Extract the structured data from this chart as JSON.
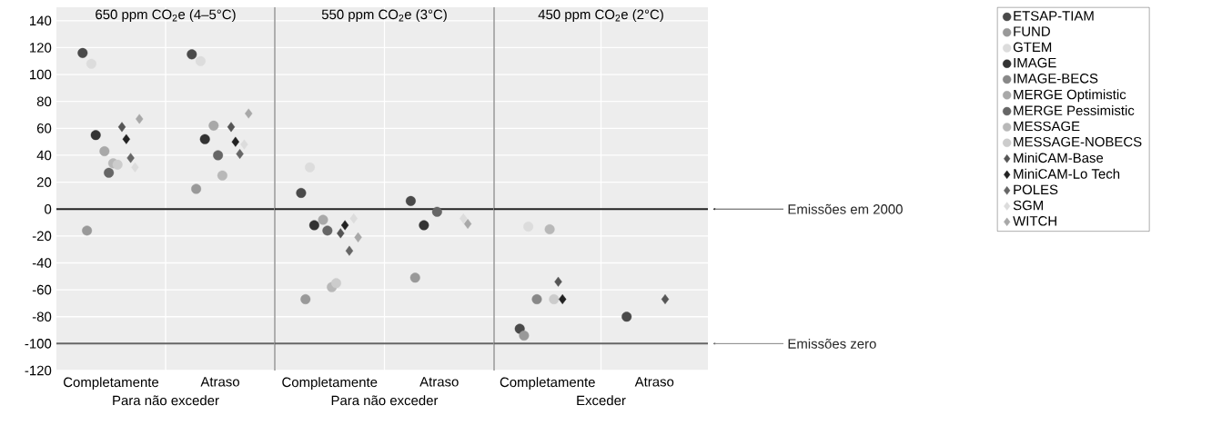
{
  "chart_data": [
    {
      "type": "scatter",
      "title": "650 ppm CO$_{2}$e (4–5°C)",
      "xlabel": "Para não exceder",
      "categories": [
        "Completamente",
        "Atraso"
      ],
      "ylim": [
        -120,
        150
      ],
      "yticks": [
        -120,
        -100,
        -80,
        -60,
        -40,
        -20,
        0,
        20,
        40,
        60,
        80,
        100,
        120,
        140
      ],
      "grid": true,
      "ref_lines": [
        {
          "axis": "y",
          "value": 0,
          "color": "#222222"
        },
        {
          "axis": "y",
          "value": -100,
          "color": "#666666"
        }
      ],
      "series": [
        {
          "color": "#4a4a4a",
          "marker": "circle",
          "values": [
            116,
            115
          ]
        },
        {
          "color": "#999999",
          "marker": "circle",
          "values": [
            -16,
            15
          ]
        },
        {
          "color": "#dcdcdc",
          "marker": "circle",
          "values": [
            108,
            110
          ]
        },
        {
          "color": "#333333",
          "marker": "circle",
          "values": [
            55,
            52
          ]
        },
        {
          "color": "#888888",
          "marker": "circle",
          "values": [
            null,
            null
          ]
        },
        {
          "color": "#a8a8a8",
          "marker": "circle",
          "values": [
            43,
            62
          ]
        },
        {
          "color": "#666666",
          "marker": "circle",
          "values": [
            27,
            40
          ]
        },
        {
          "color": "#b8b8b8",
          "marker": "circle",
          "values": [
            34,
            25
          ]
        },
        {
          "color": "#cccccc",
          "marker": "circle",
          "values": [
            33,
            null
          ]
        },
        {
          "color": "#555555",
          "marker": "diamond",
          "values": [
            61,
            61
          ]
        },
        {
          "color": "#222222",
          "marker": "diamond",
          "values": [
            52,
            50
          ]
        },
        {
          "color": "#666666",
          "marker": "diamond",
          "values": [
            38,
            41
          ]
        },
        {
          "color": "#dcdcdc",
          "marker": "diamond",
          "values": [
            31,
            48
          ]
        },
        {
          "color": "#a8a8a8",
          "marker": "diamond",
          "values": [
            67,
            71
          ]
        }
      ]
    },
    {
      "type": "scatter",
      "title": "550 ppm CO$_{2}$e (3°C)",
      "xlabel": "Para não exceder",
      "categories": [
        "Completamente",
        "Atraso"
      ],
      "ylim": [
        -120,
        150
      ],
      "yticks": [
        -120,
        -100,
        -80,
        -60,
        -40,
        -20,
        0,
        20,
        40,
        60,
        80,
        100,
        120,
        140
      ],
      "tick_labels": "x",
      "grid": true,
      "ref_lines": [
        {
          "axis": "y",
          "value": 0,
          "color": "#222222"
        },
        {
          "axis": "y",
          "value": -100,
          "color": "#666666"
        }
      ],
      "series": [
        {
          "color": "#4a4a4a",
          "marker": "circle",
          "values": [
            12,
            6
          ]
        },
        {
          "color": "#999999",
          "marker": "circle",
          "values": [
            -67,
            -51
          ]
        },
        {
          "color": "#dcdcdc",
          "marker": "circle",
          "values": [
            31,
            null
          ]
        },
        {
          "color": "#333333",
          "marker": "circle",
          "values": [
            -12,
            -12
          ]
        },
        {
          "color": "#888888",
          "marker": "circle",
          "values": [
            null,
            null
          ]
        },
        {
          "color": "#a8a8a8",
          "marker": "circle",
          "values": [
            -8,
            null
          ]
        },
        {
          "color": "#666666",
          "marker": "circle",
          "values": [
            -16,
            -2
          ]
        },
        {
          "color": "#b8b8b8",
          "marker": "circle",
          "values": [
            -58,
            null
          ]
        },
        {
          "color": "#cccccc",
          "marker": "circle",
          "values": [
            -55,
            null
          ]
        },
        {
          "color": "#555555",
          "marker": "diamond",
          "values": [
            -18,
            null
          ]
        },
        {
          "color": "#222222",
          "marker": "diamond",
          "values": [
            -12,
            null
          ]
        },
        {
          "color": "#666666",
          "marker": "diamond",
          "values": [
            -31,
            null
          ]
        },
        {
          "color": "#dcdcdc",
          "marker": "diamond",
          "values": [
            -7,
            -7
          ]
        },
        {
          "color": "#a8a8a8",
          "marker": "diamond",
          "values": [
            -21,
            -11
          ]
        }
      ]
    },
    {
      "type": "scatter",
      "title": "450 ppm CO$_{2}$e (2°C)",
      "xlabel": "Exceder",
      "categories": [
        "Completamente",
        "Atraso"
      ],
      "ylim": [
        -120,
        150
      ],
      "yticks": [
        -120,
        -100,
        -80,
        -60,
        -40,
        -20,
        0,
        20,
        40,
        60,
        80,
        100,
        120,
        140
      ],
      "tick_labels": "x",
      "grid": true,
      "legend": "right",
      "ref_lines": [
        {
          "axis": "y",
          "value": 0,
          "color": "#222222",
          "label": "Emissões em 2000"
        },
        {
          "axis": "y",
          "value": -100,
          "color": "#666666",
          "label": "Emissões zero"
        }
      ],
      "series": [
        {
          "name": "ETSAP-TIAM",
          "color": "#4a4a4a",
          "marker": "circle",
          "values": [
            -89,
            -80
          ]
        },
        {
          "name": "FUND",
          "color": "#999999",
          "marker": "circle",
          "values": [
            -94,
            null
          ]
        },
        {
          "name": "GTEM",
          "color": "#dcdcdc",
          "marker": "circle",
          "values": [
            -13,
            null
          ]
        },
        {
          "name": "IMAGE",
          "color": "#333333",
          "marker": "circle",
          "values": [
            null,
            null
          ]
        },
        {
          "name": "IMAGE-BECS",
          "color": "#888888",
          "marker": "circle",
          "values": [
            -67,
            null
          ]
        },
        {
          "name": "MERGE Optimistic",
          "color": "#a8a8a8",
          "marker": "circle",
          "values": [
            null,
            null
          ]
        },
        {
          "name": "MERGE Pessimistic",
          "color": "#666666",
          "marker": "circle",
          "values": [
            null,
            null
          ]
        },
        {
          "name": "MESSAGE",
          "color": "#b8b8b8",
          "marker": "circle",
          "values": [
            -15,
            null
          ]
        },
        {
          "name": "MESSAGE-NOBECS",
          "color": "#cccccc",
          "marker": "circle",
          "values": [
            -67,
            null
          ]
        },
        {
          "name": "MiniCAM-Base",
          "color": "#555555",
          "marker": "diamond",
          "values": [
            -54,
            -67
          ]
        },
        {
          "name": "MiniCAM-Lo Tech",
          "color": "#222222",
          "marker": "diamond",
          "values": [
            -67,
            null
          ]
        },
        {
          "name": "POLES",
          "color": "#666666",
          "marker": "diamond",
          "values": [
            null,
            null
          ]
        },
        {
          "name": "SGM",
          "color": "#dcdcdc",
          "marker": "diamond",
          "values": [
            null,
            null
          ]
        },
        {
          "name": "WITCH",
          "color": "#a8a8a8",
          "marker": "diamond",
          "values": [
            null,
            null
          ]
        }
      ]
    }
  ]
}
